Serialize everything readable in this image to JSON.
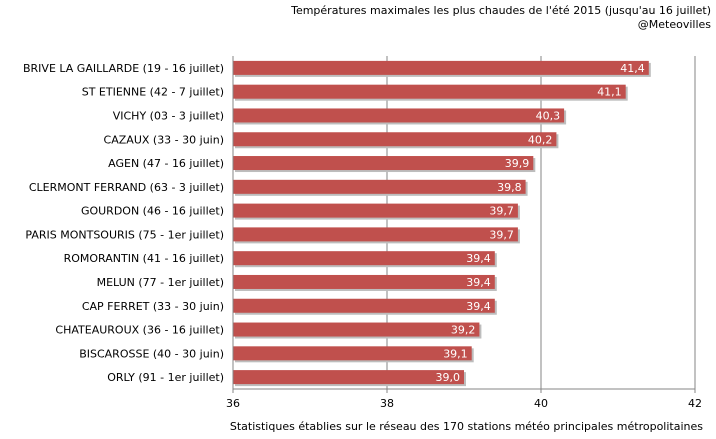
{
  "chart_data": {
    "type": "bar",
    "orientation": "horizontal",
    "title": "Températures maximales les plus chaudes  de l'été 2015 (jusqu'au 16 juillet)",
    "subtitle": "@Meteovilles",
    "footer": "Statistiques établies sur le réseau des 170 stations météo principales métropolitaines",
    "xlim": [
      36,
      42
    ],
    "xticks": [
      "36",
      "38",
      "40",
      "42"
    ],
    "grid": true,
    "bar_color": "#c0504d",
    "categories": [
      "BRIVE LA GAILLARDE (19 - 16 juillet)",
      "ST ETIENNE (42 - 7 juillet)",
      "VICHY (03 - 3 juillet)",
      "CAZAUX (33 - 30 juin)",
      "AGEN (47 - 16 juillet)",
      "CLERMONT FERRAND (63 - 3 juillet)",
      "GOURDON (46 - 16 juillet)",
      "PARIS MONTSOURIS (75 - 1er juillet)",
      "ROMORANTIN (41 - 16 juillet)",
      "MELUN (77 - 1er juillet)",
      "CAP FERRET (33 - 30 juin)",
      "CHATEAUROUX (36 - 16 juillet)",
      "BISCAROSSE (40 - 30 juin)",
      "ORLY (91 - 1er juillet)"
    ],
    "values": [
      41.4,
      41.1,
      40.3,
      40.2,
      39.9,
      39.8,
      39.7,
      39.7,
      39.4,
      39.4,
      39.4,
      39.2,
      39.1,
      39.0
    ],
    "data_labels": [
      "41,4",
      "41,1",
      "40,3",
      "40,2",
      "39,9",
      "39,8",
      "39,7",
      "39,7",
      "39,4",
      "39,4",
      "39,4",
      "39,2",
      "39,1",
      "39,0"
    ]
  }
}
